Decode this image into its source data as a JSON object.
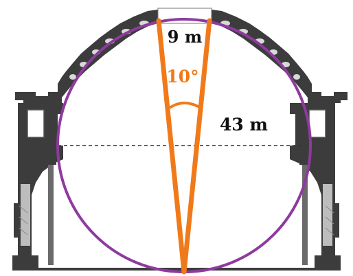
{
  "diagram": {
    "labels": {
      "oculus_width": "9 m",
      "angle": "10°",
      "diameter": "43 m"
    },
    "colors": {
      "circle": "#8e3a9e",
      "cone": "#f07a1a",
      "structure": "#3c3c3c",
      "hatch": "#8a8a8a",
      "text_dark": "#111111",
      "background": "#ffffff"
    }
  }
}
